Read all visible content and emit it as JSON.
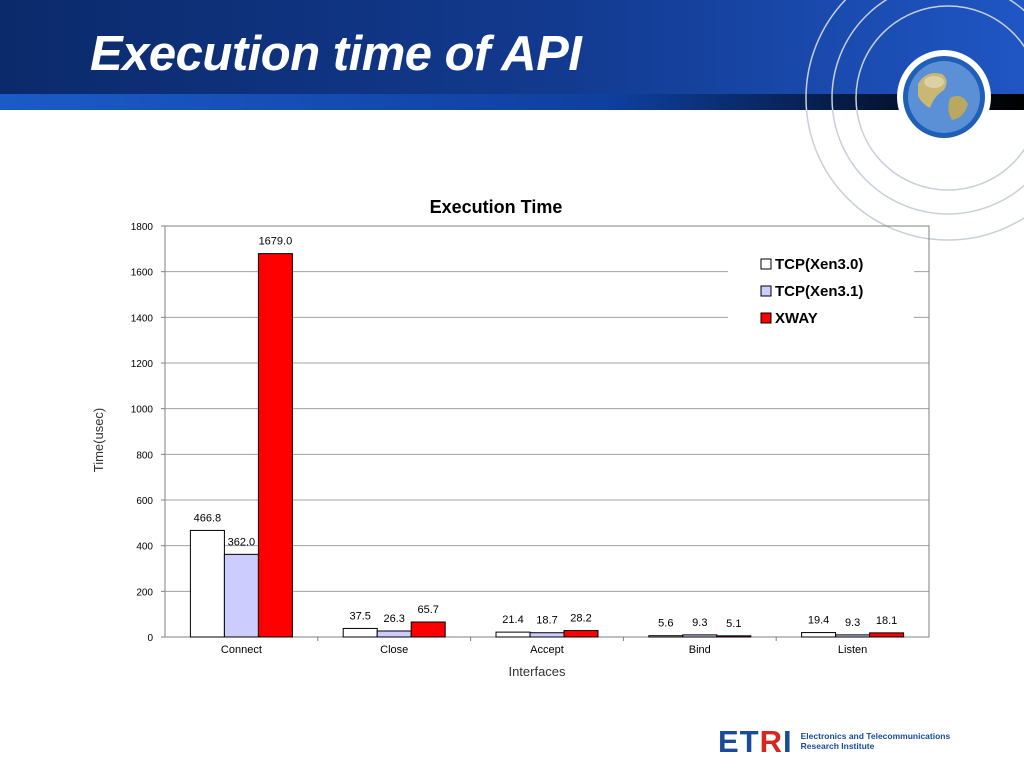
{
  "slide": {
    "title": "Execution time of API"
  },
  "logo": {
    "wordmark_left": "ET",
    "wordmark_accent": "R",
    "wordmark_right": "I",
    "line1": "Electronics and Telecommunications",
    "line2": "Research Institute"
  },
  "colors": {
    "header_dark": "#0b2a6b",
    "header_bright": "#1c4fb8",
    "brand_blue": "#1a4a9a",
    "brand_red": "#d7261e"
  },
  "chart_data": {
    "type": "bar",
    "title": "Execution Time",
    "xlabel": "Interfaces",
    "ylabel": "Time(usec)",
    "ylim": [
      0,
      1800
    ],
    "yticks": [
      0,
      200,
      400,
      600,
      800,
      1000,
      1200,
      1400,
      1600,
      1800
    ],
    "grid": true,
    "legend_position": "top-right",
    "categories": [
      "Connect",
      "Close",
      "Accept",
      "Bind",
      "Listen"
    ],
    "series": [
      {
        "name": "TCP(Xen3.0)",
        "color": "#ffffff",
        "values": [
          466.8,
          37.5,
          21.4,
          5.6,
          19.4
        ],
        "labels": [
          "466.8",
          "37.5",
          "21.4",
          "5.6",
          "19.4"
        ]
      },
      {
        "name": "TCP(Xen3.1)",
        "color": "#ccccff",
        "values": [
          362.0,
          26.3,
          18.7,
          9.3,
          9.3
        ],
        "labels": [
          "362.0",
          "26.3",
          "18.7",
          "9.3",
          "9.3"
        ]
      },
      {
        "name": "XWAY",
        "color": "#ff0000",
        "values": [
          1679.0,
          65.7,
          28.2,
          5.1,
          18.1
        ],
        "labels": [
          "1679.0",
          "65.7",
          "28.2",
          "5.1",
          "18.1"
        ]
      }
    ]
  }
}
